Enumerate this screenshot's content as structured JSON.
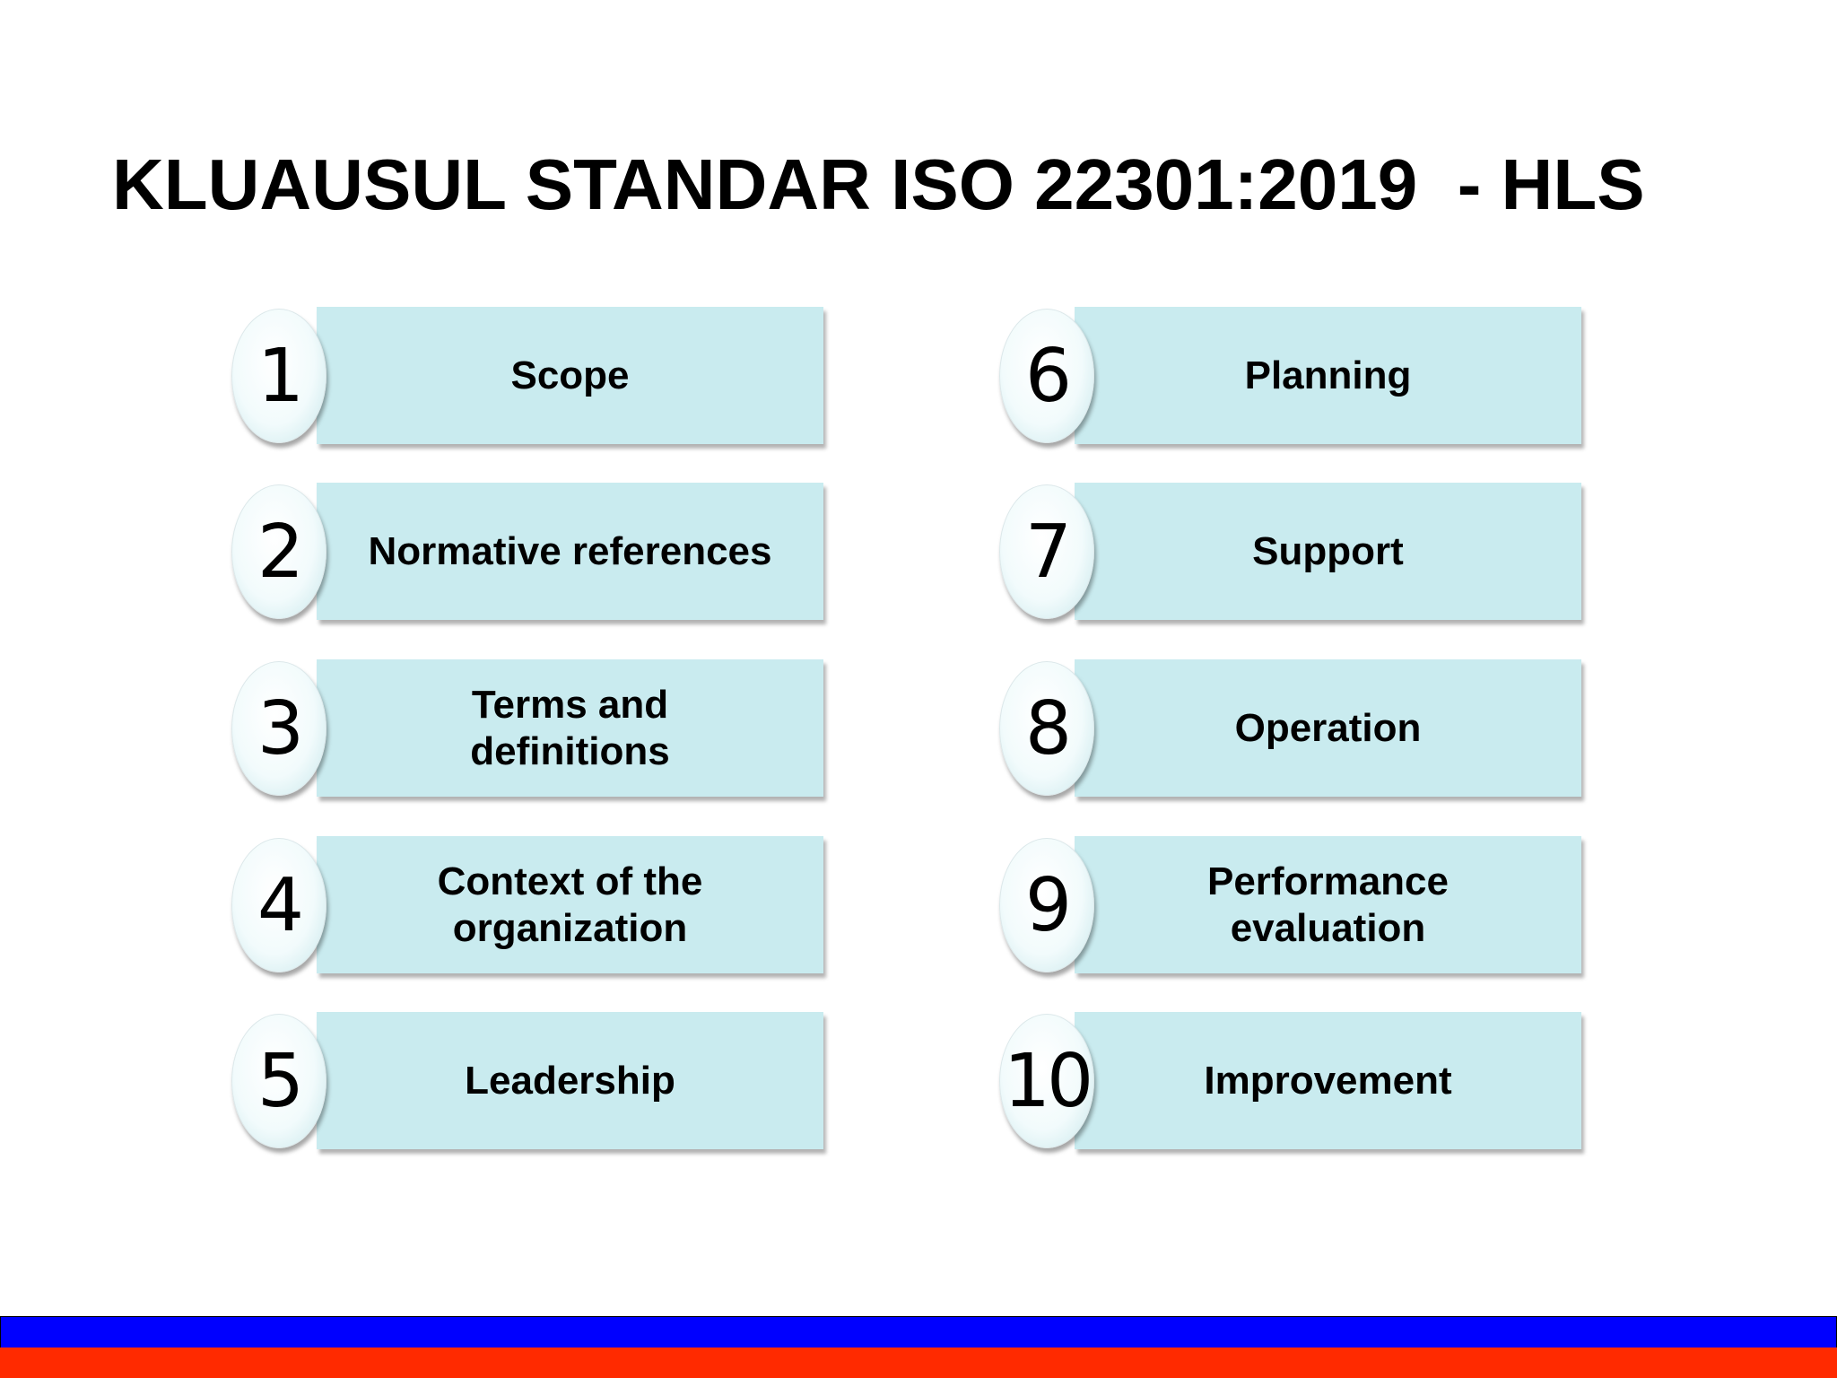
{
  "title": "KLUAUSUL STANDAR ISO 22301:2019  - HLS",
  "clauses": [
    {
      "number": "1",
      "label": "Scope"
    },
    {
      "number": "2",
      "label": "Normative references"
    },
    {
      "number": "3",
      "label": "Terms and definitions"
    },
    {
      "number": "4",
      "label": "Context of the organization"
    },
    {
      "number": "5",
      "label": "Leadership"
    },
    {
      "number": "6",
      "label": "Planning"
    },
    {
      "number": "7",
      "label": "Support"
    },
    {
      "number": "8",
      "label": "Operation"
    },
    {
      "number": "9",
      "label": "Performance evaluation"
    },
    {
      "number": "10",
      "label": "Improvement"
    }
  ]
}
